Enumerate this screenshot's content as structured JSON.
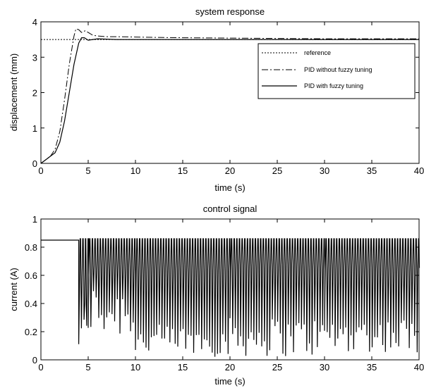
{
  "chart_data": [
    {
      "type": "line",
      "title": "system response",
      "xlabel": "time (s)",
      "ylabel": "displacement (mm)",
      "xlim": [
        0,
        40
      ],
      "ylim": [
        0,
        4
      ],
      "xticks": [
        0,
        5,
        10,
        15,
        20,
        25,
        30,
        35,
        40
      ],
      "yticks": [
        0,
        1,
        2,
        3,
        4
      ],
      "grid": false,
      "legend_position": "right",
      "series": [
        {
          "name": "reference",
          "style": "dotted",
          "x": [
            0,
            40
          ],
          "y": [
            3.5,
            3.5
          ]
        },
        {
          "name": "PID without fuzzy tuning",
          "style": "dashdot",
          "x": [
            0,
            0.5,
            1,
            1.5,
            2,
            2.5,
            3,
            3.5,
            3.7,
            4,
            4.3,
            4.7,
            5,
            5.5,
            6,
            7,
            8,
            10,
            12,
            15,
            20,
            25,
            30,
            35,
            40
          ],
          "y": [
            0,
            0.1,
            0.2,
            0.4,
            0.9,
            1.8,
            2.8,
            3.6,
            3.8,
            3.78,
            3.7,
            3.75,
            3.7,
            3.62,
            3.6,
            3.58,
            3.58,
            3.57,
            3.56,
            3.55,
            3.54,
            3.53,
            3.52,
            3.52,
            3.52
          ]
        },
        {
          "name": "PID with fuzzy tuning",
          "style": "solid",
          "x": [
            0,
            0.5,
            1,
            1.5,
            2,
            2.5,
            3,
            3.5,
            4,
            4.3,
            4.6,
            5,
            5.5,
            6,
            7,
            8,
            10,
            15,
            20,
            25,
            30,
            35,
            40
          ],
          "y": [
            0,
            0.1,
            0.2,
            0.3,
            0.6,
            1.2,
            2.0,
            2.8,
            3.4,
            3.55,
            3.55,
            3.48,
            3.5,
            3.52,
            3.51,
            3.5,
            3.5,
            3.5,
            3.5,
            3.5,
            3.5,
            3.5,
            3.5
          ]
        }
      ]
    },
    {
      "type": "line",
      "title": "control signal",
      "xlabel": "time (s)",
      "ylabel": "current (A)",
      "xlim": [
        0,
        40
      ],
      "ylim": [
        0,
        1
      ],
      "xticks": [
        0,
        5,
        10,
        15,
        20,
        25,
        30,
        35,
        40
      ],
      "yticks": [
        0,
        0.2,
        0.4,
        0.6,
        0.8,
        1
      ],
      "grid": false,
      "series": [
        {
          "style": "solid",
          "initial_level": 0.85,
          "initial_until": 4.0,
          "upper_level": 0.86,
          "switch_interval": 0.28,
          "segments": [
            {
              "x": [
                4.0,
                5.0
              ],
              "base": [
                0.35,
                0.62
              ],
              "dip": [
                0.02,
                0.32
              ]
            },
            {
              "x": [
                5.0,
                10.0
              ],
              "base": [
                0.62,
                0.68
              ],
              "dip": [
                0.15,
                0.55
              ]
            },
            {
              "x": [
                10.0,
                20.0
              ],
              "base": [
                0.62,
                0.65
              ],
              "dip": [
                0.02,
                0.25
              ]
            },
            {
              "x": [
                20.0,
                30.0
              ],
              "base": [
                0.64,
                0.68
              ],
              "dip": [
                0.02,
                0.3
              ]
            },
            {
              "x": [
                30.0,
                40.0
              ],
              "base": [
                0.62,
                0.68
              ],
              "dip": [
                0.05,
                0.3
              ]
            }
          ]
        }
      ]
    }
  ]
}
